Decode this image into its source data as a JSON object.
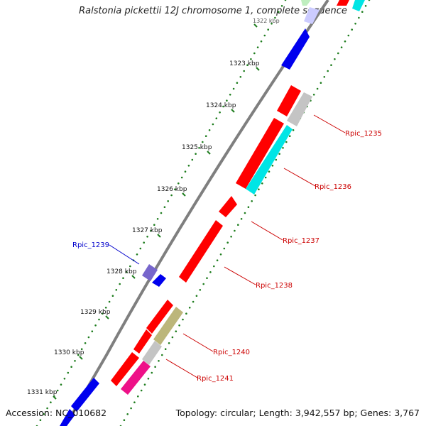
{
  "title": "Ralstonia pickettii 12J chromosome 1, complete sequence",
  "footer": {
    "accession": "Accession: NC_010682",
    "summary": "Topology: circular; Length: 3,942,557 bp; Genes: 3,767"
  },
  "ruler": {
    "partial_label": "1322 kbp",
    "labels": [
      "1323 kbp",
      "1324 kbp",
      "1325 kbp",
      "1326 kbp",
      "1327 kbp",
      "1328 kbp",
      "1329 kbp",
      "1330 kbp",
      "1331 kbp"
    ]
  },
  "gene_labels": [
    {
      "name": "Rpic_1235",
      "color": "#cc0000"
    },
    {
      "name": "Rpic_1236",
      "color": "#cc0000"
    },
    {
      "name": "Rpic_1237",
      "color": "#cc0000"
    },
    {
      "name": "Rpic_1238",
      "color": "#cc0000"
    },
    {
      "name": "Rpic_1239",
      "color": "#0000cc"
    },
    {
      "name": "Rpic_1240",
      "color": "#cc0000"
    },
    {
      "name": "Rpic_1241",
      "color": "#cc0000"
    }
  ],
  "colors": {
    "backbone": "#7f7f7f",
    "dots": "#1e7d1e",
    "red": "#ff0000",
    "blue": "#0000ee",
    "cyan": "#00e5e5",
    "gray": "#c4c4c4",
    "olive": "#bcb67a",
    "pink": "#ee1188",
    "violet": "#7766cc",
    "lavender": "#ccccff",
    "lightgreen": "#bfeebf"
  }
}
